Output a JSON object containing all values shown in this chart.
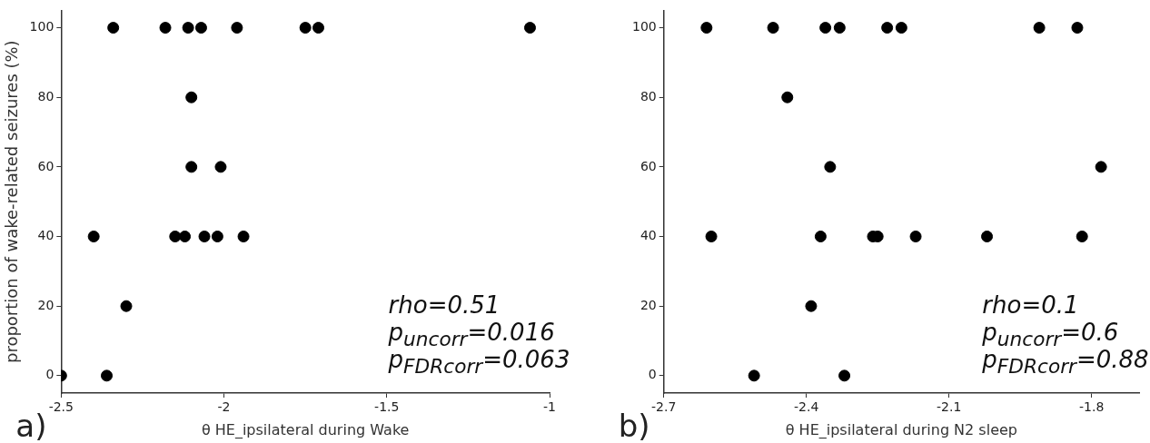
{
  "chart_data": [
    {
      "type": "scatter",
      "xlabel": "θ HE_ipsilateral during Wake",
      "ylabel": "proportion of wake-related seizures (%)",
      "color": "#000000",
      "marker": "circle",
      "grid": false,
      "x": [
        -2.34,
        -2.18,
        -2.11,
        -2.07,
        -1.96,
        -1.75,
        -1.71,
        -1.06,
        -2.1,
        -2.1,
        -2.01,
        -2.4,
        -2.15,
        -2.12,
        -2.06,
        -2.02,
        -1.94,
        -2.3,
        -2.5,
        -2.36
      ],
      "values": [
        100,
        100,
        100,
        100,
        100,
        100,
        100,
        100,
        80,
        60,
        60,
        40,
        40,
        40,
        40,
        40,
        40,
        20,
        0,
        0
      ],
      "xlim": [
        -2.5,
        -1
      ],
      "xticks": [
        -2.5,
        -2,
        -1.5,
        -1
      ],
      "ylim": [
        -5,
        105
      ],
      "yticks": [
        0,
        20,
        40,
        60,
        80,
        100
      ],
      "annotations": [
        "rho=0.51",
        "p$_{uncorr}$=0.016",
        "p$_{FDRcorr}$=0.063",
        "a)"
      ]
    },
    {
      "type": "scatter",
      "xlabel": "θ HE_ipsilateral during N2 sleep",
      "color": "#000000",
      "marker": "circle",
      "grid": false,
      "x": [
        -2.61,
        -2.47,
        -2.36,
        -2.33,
        -2.23,
        -2.2,
        -1.91,
        -1.83,
        -2.44,
        -2.35,
        -1.78,
        -2.6,
        -2.37,
        -2.26,
        -2.25,
        -2.17,
        -2.02,
        -1.82,
        -2.39,
        -2.51,
        -2.32
      ],
      "values": [
        100,
        100,
        100,
        100,
        100,
        100,
        100,
        100,
        80,
        60,
        60,
        40,
        40,
        40,
        40,
        40,
        40,
        40,
        20,
        0,
        0
      ],
      "xlim": [
        -2.7,
        -1.7
      ],
      "xticks": [
        -2.7,
        -2.4,
        -2.1,
        -1.8
      ],
      "ylim": [
        -5,
        105
      ],
      "yticks": [
        0,
        20,
        40,
        60,
        80,
        100
      ],
      "annotations": [
        "rho=0.1",
        "p$_{uncorr}$=0.6",
        "p$_{FDRcorr}$=0.88",
        "b)"
      ]
    }
  ]
}
